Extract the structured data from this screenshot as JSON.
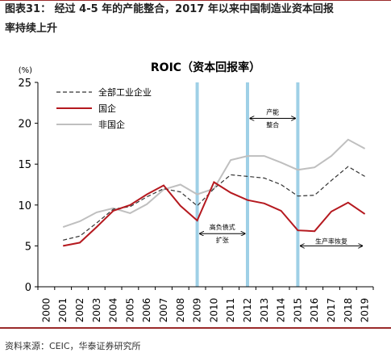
{
  "header": {
    "line1": "图表31：  经过 4-5 年的产能整合，2017 年以来中国制造业资本回报",
    "line2": "率持续上升"
  },
  "source": "资料来源：CEIC，华泰证券研究所",
  "chart_data": {
    "type": "line",
    "title": "ROIC（资本回报率）",
    "yunit": "(%)",
    "ylim": [
      0,
      25
    ],
    "yticks": [
      0,
      5,
      10,
      15,
      20,
      25
    ],
    "x": [
      "2000",
      "2001",
      "2002",
      "2003",
      "2004",
      "2005",
      "2006",
      "2007",
      "2008",
      "2009",
      "2010",
      "2011",
      "2012",
      "2013",
      "2014",
      "2015",
      "2016",
      "2017",
      "2018",
      "2019"
    ],
    "series": [
      {
        "name": "全部工业企业",
        "color": "#333333",
        "style": "dashed",
        "values": [
          null,
          5.7,
          6.2,
          7.8,
          9.5,
          9.8,
          11.0,
          12.0,
          11.6,
          9.9,
          12.0,
          13.7,
          13.5,
          13.3,
          12.5,
          11.1,
          11.2,
          13.0,
          14.7,
          13.5
        ]
      },
      {
        "name": "国企",
        "color": "#b5191f",
        "style": "solid",
        "values": [
          null,
          5.0,
          5.4,
          7.3,
          9.3,
          10.0,
          11.3,
          12.4,
          9.9,
          8.1,
          12.8,
          11.5,
          10.6,
          10.2,
          9.3,
          6.9,
          6.8,
          9.2,
          10.3,
          8.9
        ]
      },
      {
        "name": "非国企",
        "color": "#bfbfbf",
        "style": "solid",
        "values": [
          null,
          7.3,
          8.0,
          9.1,
          9.6,
          9.0,
          10.1,
          11.9,
          12.5,
          11.3,
          12.0,
          15.5,
          16.0,
          16.0,
          15.2,
          14.3,
          14.6,
          16.0,
          18.0,
          16.9
        ]
      }
    ],
    "vlines": [
      "2009",
      "2012",
      "2015"
    ],
    "annotations": [
      {
        "lines": [
          "高负债式",
          "扩张"
        ],
        "from": "2009",
        "to": "2012",
        "y": 6.5
      },
      {
        "lines": [
          "产能",
          "整合"
        ],
        "from": "2012",
        "to": "2015",
        "y": 20.6
      },
      {
        "lines": [
          "生产率恢复"
        ],
        "from": "2015",
        "to": "2019",
        "y": 5.0
      }
    ]
  }
}
